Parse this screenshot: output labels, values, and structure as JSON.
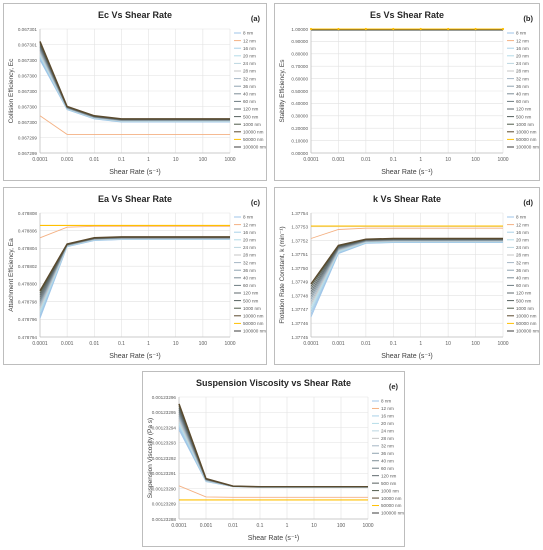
{
  "x_ticks": [
    "0.0001",
    "0.001",
    "0.01",
    "0.1",
    "1",
    "10",
    "100",
    "1000"
  ],
  "legend": [
    "8 nm",
    "12 nm",
    "16 nm",
    "20 nm",
    "24 nm",
    "28 nm",
    "32 nm",
    "36 nm",
    "40 nm",
    "60 nm",
    "120 nm",
    "500 nm",
    "1000 nm",
    "10000 nm",
    "50000 nm",
    "100000 nm"
  ],
  "colors": {
    "series_group": [
      "#9fc5e8",
      "#9fc5e8",
      "#a9d1e8",
      "#b4dce8",
      "#bcd6e0",
      "#c4c4c4",
      "#a5b6c4",
      "#8fa3b0",
      "#7d8d96",
      "#6e7c82",
      "#5f6a6e",
      "#56605e",
      "#4e5a4a",
      "#5a4a2e"
    ],
    "low_series": "#f4b183",
    "top_series": "#ffc000"
  },
  "chart_data": [
    {
      "type": "line",
      "title": "Ec Vs Shear Rate",
      "panel_label": "(a)",
      "xlabel": "Shear Rate (s⁻¹)",
      "ylabel": "Collision Efficiency, Ec",
      "x": [
        0.0001,
        0.001,
        0.01,
        0.1,
        1,
        10,
        100,
        1000
      ],
      "y_ticks": [
        "0.067299",
        "0.067299",
        "0.067300",
        "0.067300",
        "0.067300",
        "0.067300",
        "0.067300",
        "0.067301",
        "0.067301"
      ],
      "ylim": [
        0.067299,
        0.067301
      ],
      "series_envelope": {
        "top": [
          0.0673008,
          0.06729975,
          0.0672996,
          0.06729955,
          0.06729955,
          0.06729955,
          0.06729955,
          0.06729955
        ],
        "bottom": [
          0.0673005,
          0.0672997,
          0.06729955,
          0.0672995,
          0.0672995,
          0.0672995,
          0.0672995,
          0.0672995
        ]
      },
      "low_series": [
        0.0672996,
        0.0672993,
        0.0672993,
        0.0672993,
        0.0672993,
        0.0672993,
        0.0672993,
        0.0672993
      ],
      "top_series": null
    },
    {
      "type": "line",
      "title": "Es Vs Shear Rate",
      "panel_label": "(b)",
      "xlabel": "Shear Rate (s⁻¹)",
      "ylabel": "Stability Efficiency, Es",
      "x": [
        0.0001,
        0.001,
        0.01,
        0.1,
        1,
        10,
        100,
        1000
      ],
      "y_ticks": [
        "0.00000",
        "0.10000",
        "0.20000",
        "0.30000",
        "0.40000",
        "0.50000",
        "0.60000",
        "0.70000",
        "0.80000",
        "0.90000",
        "1.00000"
      ],
      "ylim": [
        0,
        1
      ],
      "series_envelope": {
        "top": [
          0.995,
          0.995,
          0.995,
          0.995,
          0.995,
          0.995,
          0.995,
          0.995
        ],
        "bottom": [
          0.99,
          0.99,
          0.99,
          0.99,
          0.99,
          0.99,
          0.99,
          0.99
        ]
      },
      "low_series": null,
      "top_series": [
        1.0,
        1.0,
        1.0,
        1.0,
        1.0,
        1.0,
        1.0,
        1.0
      ]
    },
    {
      "type": "line",
      "title": "Ea Vs Shear Rate",
      "panel_label": "(c)",
      "xlabel": "Shear Rate (s⁻¹)",
      "ylabel": "Attachment Efficiency, Ea",
      "x": [
        0.0001,
        0.001,
        0.01,
        0.1,
        1,
        10,
        100,
        1000
      ],
      "y_ticks": [
        "0.478794",
        "0.478796",
        "0.478798",
        "0.478800",
        "0.478802",
        "0.478804",
        "0.478806",
        "0.478808"
      ],
      "ylim": [
        0.478794,
        0.478808
      ],
      "series_envelope": {
        "top": [
          0.4787992,
          0.4788045,
          0.4788052,
          0.4788053,
          0.4788053,
          0.4788053,
          0.4788053,
          0.4788053
        ],
        "bottom": [
          0.4787961,
          0.4788042,
          0.4788049,
          0.478805,
          0.478805,
          0.478805,
          0.478805,
          0.478805
        ]
      },
      "low_series": [
        0.4788052,
        0.4788064,
        0.4788065,
        0.4788065,
        0.4788065,
        0.4788065,
        0.4788065,
        0.4788065
      ],
      "top_series": [
        0.4788066,
        0.4788066,
        0.4788066,
        0.4788066,
        0.4788066,
        0.4788066,
        0.4788066,
        0.4788066
      ]
    },
    {
      "type": "line",
      "title": "k Vs Shear Rate",
      "panel_label": "(d)",
      "xlabel": "Shear Rate (s⁻¹)",
      "ylabel": "Flotation Rate Constant, k (min⁻¹)",
      "x": [
        0.0001,
        0.001,
        0.01,
        0.1,
        1,
        10,
        100,
        1000
      ],
      "y_ticks": [
        "1.37745",
        "1.37746",
        "1.37747",
        "1.37748",
        "1.37749",
        "1.37750",
        "1.37751",
        "1.37752",
        "1.37753",
        "1.37754"
      ],
      "ylim": [
        1.37745,
        1.37754
      ],
      "series_envelope": {
        "top": [
          1.3774885,
          1.3775165,
          1.377521,
          1.3775215,
          1.3775215,
          1.3775215,
          1.3775215,
          1.3775215
        ],
        "bottom": [
          1.3774645,
          1.3775105,
          1.377518,
          1.3775185,
          1.3775185,
          1.3775185,
          1.3775185,
          1.3775185
        ]
      },
      "low_series": [
        1.3775215,
        1.377528,
        1.377529,
        1.377529,
        1.377529,
        1.377529,
        1.377529,
        1.377529
      ],
      "top_series": [
        1.3775305,
        1.3775305,
        1.3775305,
        1.3775305,
        1.3775305,
        1.3775305,
        1.3775305,
        1.3775305
      ]
    },
    {
      "type": "line",
      "title": "Suspension Viscosity vs Shear Rate",
      "panel_label": "(e)",
      "xlabel": "Shear Rate (s⁻¹)",
      "ylabel": "Suspension Viscosity (Pa s)",
      "x": [
        0.0001,
        0.001,
        0.01,
        0.1,
        1,
        10,
        100,
        1000
      ],
      "y_ticks": [
        "0.00123288",
        "0.00123289",
        "0.00123290",
        "0.00123291",
        "0.00123292",
        "0.00123293",
        "0.00123294",
        "0.00123295",
        "0.00123296"
      ],
      "ylim": [
        0.00123288,
        0.00123296
      ],
      "series_envelope": {
        "top": [
          0.0012329555,
          0.0012329065,
          0.0012329016,
          0.0012329011,
          0.0012329011,
          0.0012329011,
          0.0012329011,
          0.0012329011
        ],
        "bottom": [
          0.0012329385,
          0.0012329045,
          0.0012329012,
          0.0012329008,
          0.0012329008,
          0.0012329008,
          0.0012329008,
          0.0012329008
        ]
      },
      "low_series": [
        0.0012329018,
        0.0012328945,
        0.0012328942,
        0.0012328942,
        0.0012328942,
        0.0012328942,
        0.0012328942,
        0.0012328942
      ],
      "top_series": [
        0.0012328925,
        0.0012328925,
        0.0012328925,
        0.0012328925,
        0.0012328925,
        0.0012328925,
        0.0012328925,
        0.0012328925
      ]
    }
  ]
}
